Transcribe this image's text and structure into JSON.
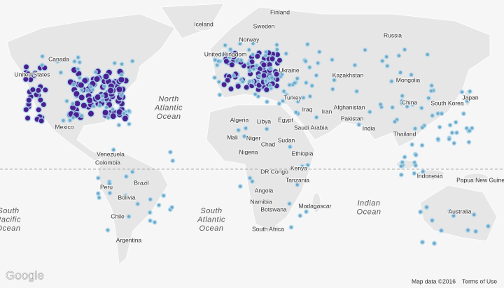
{
  "map": {
    "countries": [
      "Finland",
      "Iceland",
      "Sweden",
      "Norway",
      "Russia",
      "Canada",
      "United Kingdom",
      "Ukraine",
      "Kazakhstan",
      "Mongolia",
      "United States",
      "Turkey",
      "Japan",
      "China",
      "South Korea",
      "Afghanistan",
      "Iraq",
      "Iran",
      "Pakistan",
      "Algeria",
      "Libya",
      "Egypt",
      "Saudi Arabia",
      "India",
      "Mexico",
      "Thailand",
      "Mali",
      "Niger",
      "Chad",
      "Sudan",
      "Venezuela",
      "Nigeria",
      "Ethiopia",
      "Colombia",
      "DR Congo",
      "Kenya",
      "Indonesia",
      "Papua New Guinea",
      "Brazil",
      "Peru",
      "Tanzania",
      "Angola",
      "Bolivia",
      "Namibia",
      "Botswana",
      "Madagascar",
      "Australia",
      "Chile",
      "South Africa",
      "Argentina"
    ],
    "oceans": [
      [
        "North",
        "Atlantic",
        "Ocean"
      ],
      [
        "South",
        "Atlantic",
        "Ocean"
      ],
      [
        "Indian",
        "Ocean"
      ],
      [
        "South",
        "Pacific",
        "Ocean"
      ]
    ],
    "logo": "Google",
    "attribution": "Map data ©2016",
    "terms": "Terms of Use"
  }
}
